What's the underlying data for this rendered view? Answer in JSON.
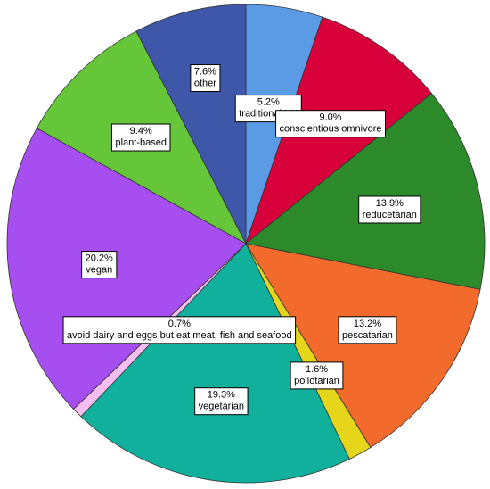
{
  "chart_data": {
    "type": "pie",
    "start_angle_deg": 0,
    "direction": "clockwise",
    "slices": [
      {
        "label": "traditional UK",
        "value": 5.2,
        "display": "5.2%",
        "color": "#5b9be6"
      },
      {
        "label": "conscientious omnivore",
        "value": 9.0,
        "display": "9.0%",
        "color": "#d8003a"
      },
      {
        "label": "reducetarian",
        "value": 13.9,
        "display": "13.9%",
        "color": "#2c8a2a"
      },
      {
        "label": "pescatarian",
        "value": 13.2,
        "display": "13.2%",
        "color": "#f26a2c"
      },
      {
        "label": "pollotarian",
        "value": 1.6,
        "display": "1.6%",
        "color": "#e5d61c"
      },
      {
        "label": "vegetarian",
        "value": 19.3,
        "display": "19.3%",
        "color": "#10b09c"
      },
      {
        "label": "avoid dairy and eggs but eat meat, fish and seafood",
        "value": 0.7,
        "display": "0.7%",
        "color": "#f7bdf0"
      },
      {
        "label": "vegan",
        "value": 20.2,
        "display": "20.2%",
        "color": "#a74ef0"
      },
      {
        "label": "plant-based",
        "value": 9.4,
        "display": "9.4%",
        "color": "#66c63a"
      },
      {
        "label": "other",
        "value": 7.6,
        "display": "7.6%",
        "color": "#3f57a8"
      }
    ]
  }
}
